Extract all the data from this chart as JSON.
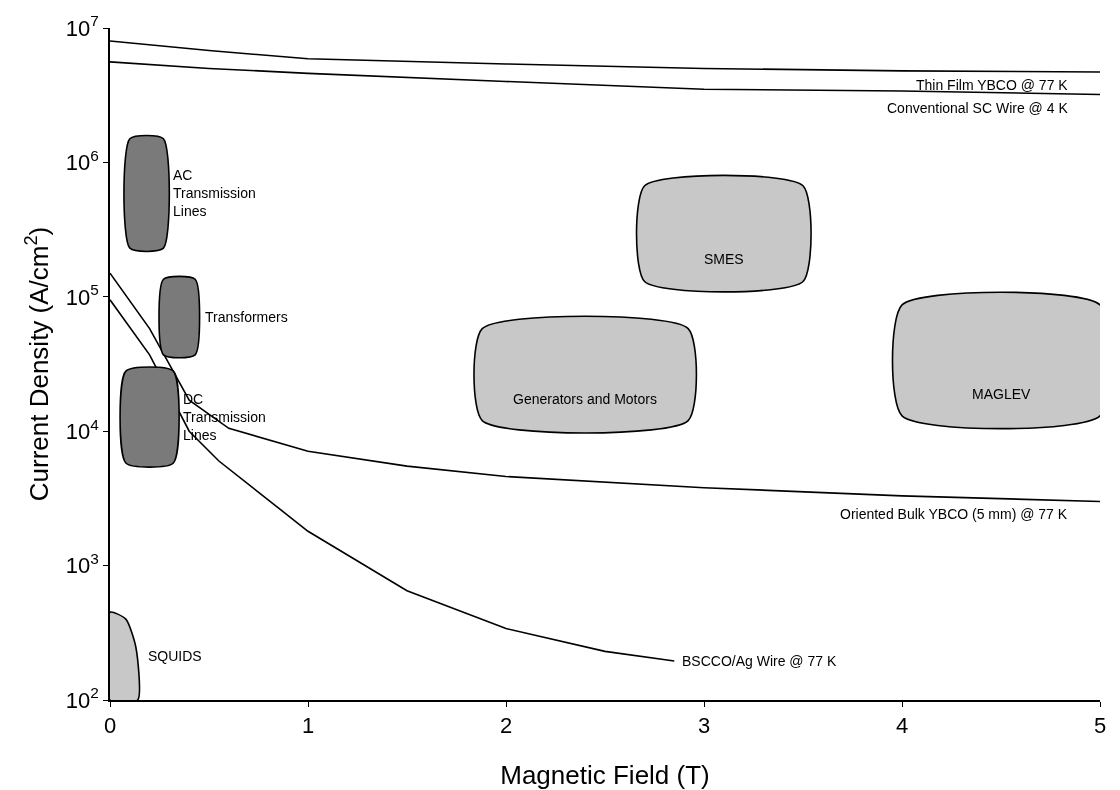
{
  "chart_data": {
    "type": "line",
    "xlabel": "Magnetic Field (T)",
    "ylabel": "Current Density (A/cm$^{2}$)",
    "log": "y",
    "grid": false,
    "legend": false,
    "marker": "none",
    "line_style": "solid",
    "xlim": [
      0,
      5
    ],
    "xticks": [
      0,
      1,
      2,
      3,
      4,
      5
    ],
    "ylim": [
      100,
      10000000
    ],
    "yticks": [
      {
        "value": 100,
        "label": "10$^{2}$"
      },
      {
        "value": 1000,
        "label": "10$^{3}$"
      },
      {
        "value": 10000,
        "label": "10$^{4}$"
      },
      {
        "value": 100000,
        "label": "10$^{5}$"
      },
      {
        "value": 1000000,
        "label": "10$^{6}$"
      },
      {
        "value": 10000000,
        "label": "10$^{7}$"
      }
    ],
    "series": [
      {
        "name": "Thin Film YBCO @ 77 K",
        "type": "line",
        "color": "#000000",
        "x": [
          0,
          0.5,
          1,
          2,
          3,
          4,
          5
        ],
        "values": [
          8000000,
          6800000,
          5900000,
          5400000,
          5000000,
          4800000,
          4700000
        ]
      },
      {
        "name": "Conventional SC Wire @ 4 K",
        "type": "line",
        "color": "#000000",
        "x": [
          0,
          0.5,
          1,
          2,
          3,
          4,
          5
        ],
        "values": [
          5600000,
          5000000,
          4600000,
          4000000,
          3500000,
          3400000,
          3200000
        ]
      },
      {
        "name": "Oriented Bulk YBCO (5 mm) @ 77 K",
        "type": "line",
        "color": "#000000",
        "x": [
          0,
          0.2,
          0.4,
          0.6,
          1,
          1.5,
          2,
          3,
          4,
          5
        ],
        "values": [
          150000,
          58000,
          17000,
          10500,
          7100,
          5500,
          4600,
          3800,
          3300,
          3000
        ]
      },
      {
        "name": "BSCCO/Ag Wire @ 77 K",
        "type": "line",
        "color": "#000000",
        "x": [
          0,
          0.2,
          0.4,
          0.55,
          1,
          1.5,
          2,
          2.5,
          2.85
        ],
        "values": [
          95000,
          37000,
          10000,
          6000,
          1800,
          650,
          340,
          230,
          195
        ]
      },
      {
        "name": "AC Transmission Lines",
        "type": "area",
        "color": "#7a7a7a",
        "x": [
          0.1,
          0.27,
          0.27,
          0.1,
          0.1
        ],
        "values": [
          230000,
          230000,
          1500000,
          1500000,
          230000
        ]
      },
      {
        "name": "Transformers",
        "type": "area",
        "color": "#7a7a7a",
        "x": [
          0.27,
          0.43,
          0.43,
          0.27,
          0.27
        ],
        "values": [
          37000,
          37000,
          135000,
          135000,
          37000
        ]
      },
      {
        "name": "DC Transmission Lines",
        "type": "area",
        "color": "#7a7a7a",
        "x": [
          0.08,
          0.32,
          0.32,
          0.08,
          0.08
        ],
        "values": [
          5800,
          5800,
          28000,
          28000,
          5800
        ]
      },
      {
        "name": "SMES",
        "type": "area",
        "color": "#c8c8c8",
        "x": [
          2.7,
          3.5,
          3.5,
          2.7,
          2.7
        ],
        "values": [
          130000,
          130000,
          670000,
          670000,
          130000
        ]
      },
      {
        "name": "Generators and Motors",
        "type": "area",
        "color": "#c8c8c8",
        "x": [
          1.88,
          2.92,
          2.92,
          1.88,
          1.88
        ],
        "values": [
          12000,
          12000,
          58000,
          58000,
          12000
        ]
      },
      {
        "name": "MAGLEV",
        "type": "area",
        "color": "#c8c8c8",
        "x": [
          4.0,
          5.0,
          5.0,
          4.0,
          4.0
        ],
        "values": [
          13000,
          13000,
          87000,
          87000,
          13000
        ]
      },
      {
        "name": "SQUIDS",
        "type": "area",
        "color": "#c8c8c8",
        "x": [
          0,
          0,
          0.08,
          0.13,
          0.14,
          0
        ],
        "values": [
          100,
          450,
          400,
          250,
          100,
          100
        ]
      }
    ]
  }
}
